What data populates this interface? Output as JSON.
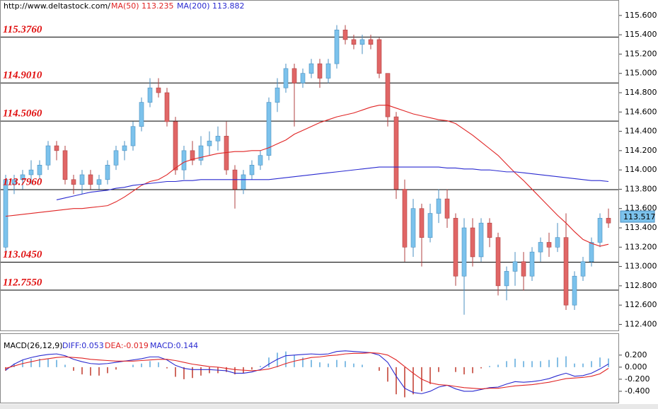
{
  "chart_data": [
    {
      "type": "candlestick",
      "source": "http://www.deltastock.com/",
      "ylim": [
        112.33,
        115.76
      ],
      "yticks": [
        {
          "value": 112.4,
          "label": "112.400"
        },
        {
          "value": 112.6,
          "label": "112.600"
        },
        {
          "value": 112.8,
          "label": "112.800"
        },
        {
          "value": 113.0,
          "label": "113.000"
        },
        {
          "value": 113.2,
          "label": "113.200"
        },
        {
          "value": 113.4,
          "label": "113.400"
        },
        {
          "value": 113.6,
          "label": "113.600"
        },
        {
          "value": 113.8,
          "label": "113.800"
        },
        {
          "value": 114.0,
          "label": "114.000"
        },
        {
          "value": 114.2,
          "label": "114.200"
        },
        {
          "value": 114.4,
          "label": "114.400"
        },
        {
          "value": 114.6,
          "label": "114.600"
        },
        {
          "value": 114.8,
          "label": "114.800"
        },
        {
          "value": 115.0,
          "label": "115.000"
        },
        {
          "value": 115.2,
          "label": "115.200"
        },
        {
          "value": 115.4,
          "label": "115.400"
        },
        {
          "value": 115.6,
          "label": "115.600"
        }
      ],
      "levels": [
        {
          "value": 115.376,
          "label": "115.3760"
        },
        {
          "value": 114.901,
          "label": "114.9010"
        },
        {
          "value": 114.506,
          "label": "114.5060"
        },
        {
          "value": 113.796,
          "label": "113.7960"
        },
        {
          "value": 113.045,
          "label": "113.0450"
        },
        {
          "value": 112.755,
          "label": "112.7550"
        }
      ],
      "up_color": "#7cc2ec",
      "down_color": "#e06666",
      "last_price": 113.517,
      "ohlc": [
        [
          113.2,
          113.95,
          113.15,
          113.9
        ],
        [
          113.85,
          113.95,
          113.75,
          113.9
        ],
        [
          113.9,
          114.0,
          113.8,
          113.95
        ],
        [
          113.95,
          114.1,
          113.85,
          114.0
        ],
        [
          113.95,
          114.1,
          113.9,
          114.05
        ],
        [
          114.05,
          114.3,
          114.0,
          114.25
        ],
        [
          114.25,
          114.3,
          114.1,
          114.2
        ],
        [
          114.2,
          114.25,
          113.85,
          113.9
        ],
        [
          113.9,
          113.95,
          113.75,
          113.85
        ],
        [
          113.85,
          114.0,
          113.75,
          113.95
        ],
        [
          113.95,
          114.0,
          113.8,
          113.85
        ],
        [
          113.85,
          113.95,
          113.8,
          113.9
        ],
        [
          113.9,
          114.1,
          113.85,
          114.05
        ],
        [
          114.05,
          114.25,
          114.0,
          114.2
        ],
        [
          114.2,
          114.3,
          114.1,
          114.25
        ],
        [
          114.25,
          114.5,
          114.2,
          114.45
        ],
        [
          114.45,
          114.75,
          114.4,
          114.7
        ],
        [
          114.7,
          114.95,
          114.65,
          114.85
        ],
        [
          114.85,
          114.95,
          114.75,
          114.8
        ],
        [
          114.8,
          114.85,
          114.45,
          114.5
        ],
        [
          114.5,
          114.55,
          113.95,
          114.0
        ],
        [
          114.0,
          114.25,
          113.9,
          114.2
        ],
        [
          114.2,
          114.3,
          114.05,
          114.1
        ],
        [
          114.1,
          114.35,
          114.05,
          114.25
        ],
        [
          114.25,
          114.4,
          114.15,
          114.3
        ],
        [
          114.3,
          114.45,
          114.2,
          114.35
        ],
        [
          114.35,
          114.5,
          113.95,
          114.0
        ],
        [
          114.0,
          114.05,
          113.6,
          113.8
        ],
        [
          113.8,
          114.0,
          113.75,
          113.95
        ],
        [
          113.95,
          114.1,
          113.9,
          114.05
        ],
        [
          114.05,
          114.2,
          114.0,
          114.15
        ],
        [
          114.15,
          114.75,
          114.1,
          114.7
        ],
        [
          114.7,
          114.95,
          114.6,
          114.85
        ],
        [
          114.85,
          115.1,
          114.8,
          115.05
        ],
        [
          115.05,
          115.1,
          114.45,
          114.9
        ],
        [
          114.9,
          115.05,
          114.85,
          115.0
        ],
        [
          115.0,
          115.15,
          114.95,
          115.1
        ],
        [
          115.1,
          115.15,
          114.85,
          114.95
        ],
        [
          114.95,
          115.15,
          114.9,
          115.1
        ],
        [
          115.1,
          115.5,
          115.05,
          115.45
        ],
        [
          115.45,
          115.5,
          115.3,
          115.35
        ],
        [
          115.35,
          115.4,
          115.25,
          115.3
        ],
        [
          115.3,
          115.4,
          115.2,
          115.35
        ],
        [
          115.35,
          115.4,
          115.25,
          115.3
        ],
        [
          115.35,
          115.37,
          114.95,
          115.0
        ],
        [
          115.0,
          115.0,
          114.45,
          114.55
        ],
        [
          114.55,
          114.6,
          113.7,
          113.8
        ],
        [
          113.8,
          113.9,
          113.05,
          113.2
        ],
        [
          113.2,
          113.7,
          113.1,
          113.6
        ],
        [
          113.6,
          113.65,
          113.0,
          113.3
        ],
        [
          113.3,
          113.65,
          113.25,
          113.55
        ],
        [
          113.55,
          113.8,
          113.45,
          113.7
        ],
        [
          113.7,
          113.8,
          113.4,
          113.5
        ],
        [
          113.5,
          113.55,
          112.8,
          112.9
        ],
        [
          112.9,
          113.5,
          112.5,
          113.4
        ],
        [
          113.4,
          113.5,
          113.0,
          113.1
        ],
        [
          113.1,
          113.5,
          113.05,
          113.45
        ],
        [
          113.45,
          113.5,
          113.2,
          113.3
        ],
        [
          113.3,
          113.35,
          112.7,
          112.8
        ],
        [
          112.8,
          113.0,
          112.65,
          112.95
        ],
        [
          112.95,
          113.15,
          112.8,
          113.05
        ],
        [
          113.05,
          113.15,
          112.75,
          112.9
        ],
        [
          112.9,
          113.2,
          112.85,
          113.15
        ],
        [
          113.15,
          113.3,
          113.05,
          113.25
        ],
        [
          113.25,
          113.35,
          113.1,
          113.2
        ],
        [
          113.2,
          113.45,
          113.15,
          113.3
        ],
        [
          113.3,
          113.55,
          112.55,
          112.6
        ],
        [
          112.6,
          112.95,
          112.55,
          112.9
        ],
        [
          112.9,
          113.1,
          112.85,
          113.05
        ],
        [
          113.05,
          113.3,
          113.0,
          113.25
        ],
        [
          113.25,
          113.55,
          113.2,
          113.5
        ],
        [
          113.5,
          113.6,
          113.4,
          113.45
        ]
      ],
      "series": [
        {
          "name": "MA(50)",
          "color": "#e02424",
          "legend_value": 113.235,
          "values": [
            113.52,
            113.53,
            113.54,
            113.55,
            113.56,
            113.57,
            113.58,
            113.59,
            113.6,
            113.6,
            113.61,
            113.62,
            113.63,
            113.67,
            113.72,
            113.78,
            113.84,
            113.88,
            113.9,
            113.95,
            114.02,
            114.08,
            114.11,
            114.13,
            114.15,
            114.17,
            114.18,
            114.19,
            114.19,
            114.2,
            114.2,
            114.23,
            114.27,
            114.31,
            114.37,
            114.41,
            114.45,
            114.49,
            114.52,
            114.55,
            114.57,
            114.59,
            114.62,
            114.65,
            114.67,
            114.67,
            114.64,
            114.61,
            114.58,
            114.56,
            114.54,
            114.52,
            114.51,
            114.48,
            114.42,
            114.36,
            114.29,
            114.22,
            114.15,
            114.06,
            113.97,
            113.89,
            113.8,
            113.71,
            113.62,
            113.53,
            113.45,
            113.36,
            113.28,
            113.24,
            113.21,
            113.23
          ]
        },
        {
          "name": "MA(200)",
          "color": "#2a2ad0",
          "legend_value": 113.882,
          "values": [
            null,
            null,
            null,
            null,
            null,
            null,
            113.69,
            113.71,
            113.73,
            113.75,
            113.77,
            113.78,
            113.79,
            113.81,
            113.82,
            113.84,
            113.85,
            113.86,
            113.87,
            113.88,
            113.88,
            113.89,
            113.89,
            113.9,
            113.9,
            113.9,
            113.9,
            113.9,
            113.9,
            113.9,
            113.9,
            113.9,
            113.91,
            113.92,
            113.93,
            113.94,
            113.95,
            113.96,
            113.97,
            113.98,
            113.99,
            114.0,
            114.01,
            114.02,
            114.03,
            114.03,
            114.03,
            114.03,
            114.03,
            114.03,
            114.03,
            114.03,
            114.02,
            114.02,
            114.01,
            114.01,
            114.0,
            114.0,
            113.99,
            113.98,
            113.98,
            113.97,
            113.96,
            113.95,
            113.94,
            113.93,
            113.92,
            113.91,
            113.9,
            113.89,
            113.89,
            113.88
          ]
        }
      ]
    },
    {
      "type": "macd",
      "title": "MACD(26,12,9)",
      "ylim": [
        -0.6,
        0.55
      ],
      "yticks": [
        {
          "value": 0.2,
          "label": "0.200"
        },
        {
          "value": 0.0,
          "label": "0.000"
        },
        {
          "value": -0.2,
          "label": "-0.200"
        },
        {
          "value": -0.4,
          "label": "-0.400"
        }
      ],
      "histogram": {
        "legend_label": "MACD:0.144",
        "up_color": "#5aa9dc",
        "down_color": "#c0392b",
        "values": [
          -0.06,
          0.06,
          0.12,
          0.14,
          0.14,
          0.14,
          0.12,
          0.04,
          -0.06,
          -0.12,
          -0.14,
          -0.14,
          -0.1,
          -0.04,
          0,
          0.04,
          0.06,
          0.1,
          0.08,
          -0.02,
          -0.16,
          -0.2,
          -0.18,
          -0.14,
          -0.1,
          -0.1,
          -0.08,
          -0.12,
          -0.1,
          -0.04,
          0.02,
          0.16,
          0.24,
          0.26,
          0.2,
          0.16,
          0.12,
          0.08,
          0.06,
          0.12,
          0.1,
          0.06,
          0.04,
          0,
          -0.06,
          -0.24,
          -0.45,
          -0.5,
          -0.45,
          -0.4,
          -0.28,
          -0.08,
          0,
          -0.08,
          -0.12,
          -0.1,
          -0.02,
          0.02,
          0.04,
          0.1,
          0.14,
          0.1,
          0.1,
          0.1,
          0.12,
          0.16,
          0.18,
          0.06,
          0.06,
          0.1,
          0.16,
          0.144
        ]
      },
      "series": [
        {
          "name": "DIFF",
          "legend_label": "DIFF:0.053",
          "color": "#2a2ad0",
          "values": [
            -0.05,
            0.05,
            0.12,
            0.16,
            0.19,
            0.21,
            0.22,
            0.19,
            0.13,
            0.09,
            0.06,
            0.05,
            0.06,
            0.08,
            0.1,
            0.12,
            0.14,
            0.17,
            0.17,
            0.12,
            0.03,
            -0.02,
            -0.04,
            -0.04,
            -0.04,
            -0.05,
            -0.06,
            -0.1,
            -0.1,
            -0.08,
            -0.04,
            0.05,
            0.13,
            0.19,
            0.2,
            0.21,
            0.22,
            0.21,
            0.22,
            0.26,
            0.27,
            0.26,
            0.25,
            0.24,
            0.2,
            0.08,
            -0.15,
            -0.35,
            -0.42,
            -0.44,
            -0.4,
            -0.33,
            -0.3,
            -0.36,
            -0.4,
            -0.4,
            -0.37,
            -0.34,
            -0.33,
            -0.28,
            -0.24,
            -0.25,
            -0.24,
            -0.22,
            -0.19,
            -0.14,
            -0.1,
            -0.15,
            -0.14,
            -0.1,
            -0.03,
            0.053
          ]
        },
        {
          "name": "DEA",
          "legend_label": "DEA:-0.019",
          "color": "#e02424",
          "values": [
            -0.02,
            0.02,
            0.06,
            0.09,
            0.12,
            0.14,
            0.16,
            0.17,
            0.16,
            0.15,
            0.13,
            0.12,
            0.11,
            0.1,
            0.1,
            0.1,
            0.11,
            0.12,
            0.13,
            0.13,
            0.11,
            0.08,
            0.05,
            0.03,
            0.01,
            0,
            -0.02,
            -0.04,
            -0.05,
            -0.06,
            -0.05,
            -0.03,
            0.01,
            0.06,
            0.1,
            0.13,
            0.16,
            0.17,
            0.19,
            0.2,
            0.22,
            0.23,
            0.23,
            0.24,
            0.23,
            0.2,
            0.12,
            0.01,
            -0.1,
            -0.2,
            -0.26,
            -0.29,
            -0.3,
            -0.32,
            -0.34,
            -0.35,
            -0.36,
            -0.35,
            -0.35,
            -0.33,
            -0.31,
            -0.3,
            -0.29,
            -0.27,
            -0.25,
            -0.22,
            -0.19,
            -0.18,
            -0.17,
            -0.15,
            -0.11,
            -0.019
          ]
        }
      ]
    }
  ]
}
